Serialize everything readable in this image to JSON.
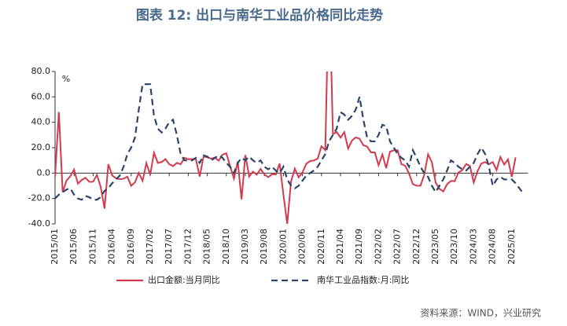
{
  "chart_data": {
    "type": "line",
    "title": "图表 12: 出口与南华工业品价格同比走势",
    "y_label": "%",
    "source": "资料来源：WIND，兴业研究",
    "categories": [
      "2015/01",
      null,
      null,
      null,
      null,
      "2015/06",
      null,
      null,
      null,
      null,
      "2015/11",
      null,
      null,
      null,
      null,
      "2016/04",
      null,
      null,
      null,
      null,
      "2016/09",
      null,
      null,
      null,
      null,
      "2017/02",
      null,
      null,
      null,
      null,
      "2017/07",
      null,
      null,
      null,
      null,
      "2017/12",
      null,
      null,
      null,
      null,
      "2018/05",
      null,
      null,
      null,
      null,
      "2018/10",
      null,
      null,
      null,
      null,
      "2019/03",
      null,
      null,
      null,
      null,
      "2019/08",
      null,
      null,
      null,
      null,
      "2020/01",
      null,
      null,
      null,
      null,
      "2020/06",
      null,
      null,
      null,
      null,
      "2020/11",
      null,
      null,
      null,
      null,
      "2021/04",
      null,
      null,
      null,
      null,
      "2021/09",
      null,
      null,
      null,
      null,
      "2022/02",
      null,
      null,
      null,
      null,
      "2022/07",
      null,
      null,
      null,
      null,
      "2022/12",
      null,
      null,
      null,
      null,
      "2023/05",
      null,
      null,
      null,
      null,
      "2023/10",
      null,
      null,
      null,
      null,
      "2024/03",
      null,
      null,
      null,
      null,
      "2024/08",
      null,
      null,
      null,
      null,
      "2025/01",
      null,
      null,
      null
    ],
    "series": [
      {
        "name": "出口金额:当月同比",
        "color": "#d23b4e",
        "dash": false,
        "values": [
          -3,
          48,
          -15,
          -6,
          -2.5,
          2.8,
          -8.3,
          -5.5,
          -3.7,
          -6.9,
          -6.8,
          -1.4,
          -11,
          -28,
          7,
          -1.8,
          -4.1,
          -4.8,
          -4.4,
          -2.8,
          -10,
          -7.3,
          0.1,
          -6.1,
          7.9,
          -1.3,
          16,
          8,
          8.7,
          11,
          7,
          5.5,
          8,
          6.9,
          12,
          10.9,
          11,
          11,
          -2.7,
          12.9,
          12.6,
          11.3,
          12.2,
          9.8,
          14.5,
          15.6,
          5.4,
          -4.4,
          9.1,
          -20.7,
          14.2,
          -2.7,
          1.1,
          -1.3,
          3.3,
          -1,
          -3.2,
          -0.9,
          -1.1,
          7.6,
          -17,
          -40,
          -6.6,
          3.5,
          -3.3,
          0.5,
          7.2,
          9.5,
          9.9,
          11.4,
          21.1,
          18.1,
          154.9,
          30.6,
          32.3,
          27.9,
          32.2,
          19.3,
          25.6,
          28.1,
          27.1,
          22,
          20.9,
          16.3,
          16.3,
          6.2,
          14.7,
          3.9,
          16.9,
          17.9,
          18,
          7.1,
          5.7,
          -0.3,
          -8.7,
          -9.9,
          -10,
          -1.3,
          14.8,
          8.5,
          -7.5,
          -12.4,
          -14.5,
          -8.8,
          -6.2,
          -6.4,
          0.5,
          2.3,
          7.1,
          5.6,
          -7.5,
          1.5,
          7.6,
          8.6,
          7,
          8.7,
          2.4,
          12.7,
          6.7,
          10.7,
          -3,
          12.4,
          null,
          null
        ]
      },
      {
        "name": "南华工业品指数:月:同比",
        "color": "#2c4468",
        "dash": true,
        "values": [
          -20,
          -17,
          -15,
          -13,
          -12,
          -17,
          -20,
          -21,
          -18,
          -19,
          -21,
          -21,
          -19,
          -14,
          -12,
          -8,
          -5,
          -2,
          5,
          15,
          20,
          28,
          50,
          70,
          70,
          70,
          45,
          35,
          32,
          35,
          40,
          42,
          30,
          15,
          10,
          10,
          10,
          12,
          8,
          14,
          13,
          10,
          12,
          14,
          12,
          8,
          5,
          0,
          8,
          12,
          10,
          13,
          10,
          8,
          10,
          5,
          3,
          5,
          2,
          0,
          5,
          -5,
          -10,
          -12,
          -10,
          -6,
          -2,
          0,
          2,
          5,
          10,
          15,
          25,
          30,
          35,
          48,
          46,
          42,
          45,
          50,
          60,
          42,
          28,
          25,
          25,
          30,
          38,
          37,
          25,
          20,
          15,
          12,
          10,
          5,
          18,
          12,
          5,
          0,
          -3,
          -10,
          -15,
          -10,
          -5,
          2,
          10,
          8,
          5,
          3,
          2,
          5,
          8,
          15,
          20,
          15,
          5,
          -10,
          -5,
          -3,
          -5,
          -5,
          -5,
          -8,
          -12,
          -16
        ]
      }
    ],
    "ylim": [
      -40,
      80
    ],
    "yticks": [
      {
        "value": -40,
        "label": "-40.0"
      },
      {
        "value": -20,
        "label": "-20.0"
      },
      {
        "value": 0,
        "label": "0.0"
      },
      {
        "value": 20,
        "label": "20.0"
      },
      {
        "value": 40,
        "label": "40.0"
      },
      {
        "value": 60,
        "label": "60.0"
      },
      {
        "value": 80,
        "label": "80.0"
      }
    ],
    "grid": false
  }
}
